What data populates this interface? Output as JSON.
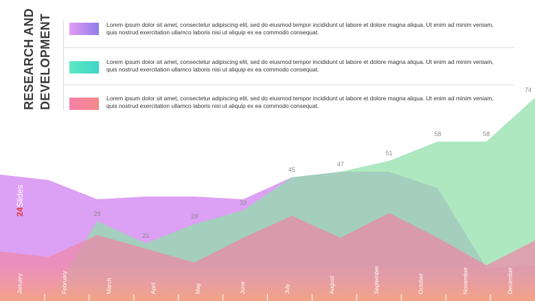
{
  "title": {
    "line1": "RESEARCH AND",
    "line2": "DEVELOPMENT"
  },
  "legend": [
    {
      "text": "Lorem ipsum dolor sit amet, consectetur adipiscing elit, sed do eiusmod tempor incididunt ut labore et dolore magna aliqua. Ut enim ad minim veniam, quis nostrud exercitation ullamco laboris nisi ut aliquip ex ea commodo consequat.",
      "color_start": "#e49bf6",
      "color_end": "#8f7ee9"
    },
    {
      "text": "Lorem ipsum dolor sit amet, consectetur adipiscing elit, sed do eiusmod tempor incididunt ut labore et dolore magna aliqua. Ut enim ad minim veniam, quis nostrud exercitation ullamco laboris nisi ut aliquip ex ea commodo consequat.",
      "color_start": "#5ee8c4",
      "color_end": "#3fd6c6"
    },
    {
      "text": "Lorem ipsum dolor sit amet, consectetur adipiscing elit, sed do eiusmod tempor incididunt ut labore et dolore magna aliqua. Ut enim ad minim veniam, quis nostrud exercitation ullamco laboris nisi ut aliquip ex ea commodo consequat.",
      "color_start": "#f77fa6",
      "color_end": "#f48a8a"
    }
  ],
  "brand": {
    "number": "24",
    "name": "Slides"
  },
  "chart_data": {
    "type": "area",
    "categories": [
      "January",
      "February",
      "March",
      "April",
      "May",
      "June",
      "July",
      "August",
      "September",
      "October",
      "November",
      "December"
    ],
    "ylim": [
      0,
      80
    ],
    "series": [
      {
        "values": [
          46,
          44,
          37,
          38,
          38,
          37,
          45,
          47,
          47,
          41,
          12,
          13
        ],
        "color": "#d68ff2"
      },
      {
        "values": [
          0,
          0,
          29,
          21,
          28,
          33,
          45,
          47,
          51,
          58,
          58,
          74
        ],
        "color": "#8fdfa8",
        "labels": [
          "",
          "",
          "29",
          "21",
          "28",
          "33",
          "45",
          "47",
          "51",
          "58",
          "58",
          "74"
        ]
      },
      {
        "values": [
          18,
          16,
          24,
          19,
          14,
          23,
          31,
          23,
          32,
          23,
          13,
          22
        ],
        "color": "#ee86a8"
      }
    ],
    "bottom_band": [
      "#f59fa8",
      "#f4a47f"
    ]
  }
}
